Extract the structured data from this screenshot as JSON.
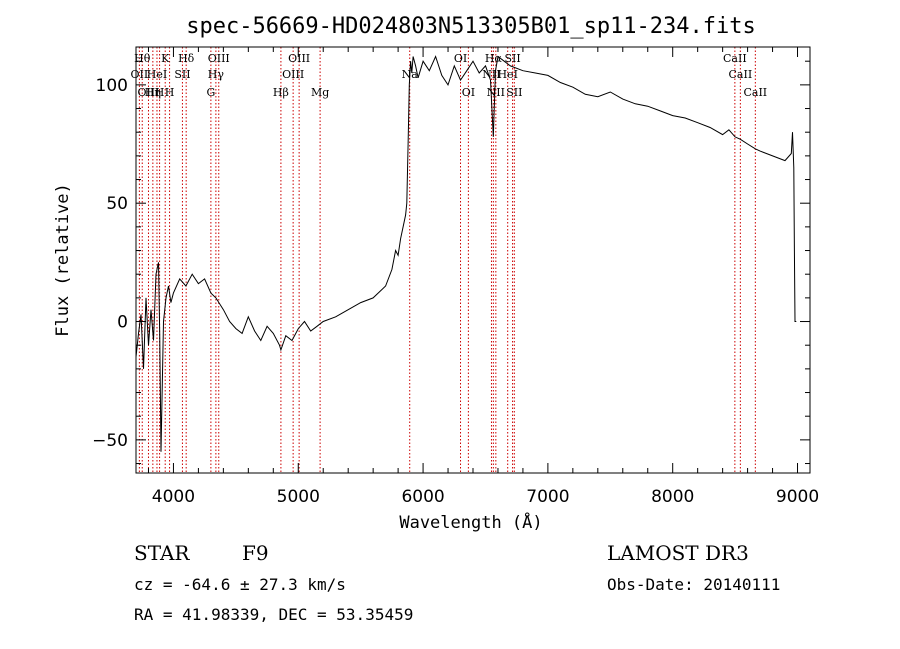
{
  "chart_data": {
    "type": "line",
    "title": "spec-56669-HD024803N513305B01_sp11-234.fits",
    "xlabel": "Wavelength (Å)",
    "ylabel": "Flux (relative)",
    "xlim": [
      3700,
      9100
    ],
    "ylim": [
      -64,
      116
    ],
    "xticks": [
      4000,
      5000,
      6000,
      7000,
      8000,
      9000
    ],
    "yticks": [
      -50,
      0,
      50,
      100
    ],
    "grid": false,
    "series": [
      {
        "name": "flux",
        "color": "#000000",
        "x": [
          3700,
          3720,
          3740,
          3760,
          3780,
          3800,
          3820,
          3840,
          3860,
          3880,
          3890,
          3900,
          3920,
          3940,
          3960,
          3980,
          4000,
          4050,
          4100,
          4150,
          4200,
          4250,
          4300,
          4340,
          4400,
          4450,
          4500,
          4550,
          4600,
          4650,
          4700,
          4750,
          4800,
          4850,
          4861,
          4900,
          4950,
          5000,
          5050,
          5100,
          5150,
          5200,
          5300,
          5400,
          5500,
          5600,
          5700,
          5750,
          5780,
          5800,
          5820,
          5840,
          5860,
          5870,
          5880,
          5890,
          5900,
          5910,
          5920,
          5940,
          5960,
          6000,
          6050,
          6100,
          6150,
          6200,
          6250,
          6300,
          6350,
          6400,
          6450,
          6500,
          6540,
          6563,
          6580,
          6600,
          6650,
          6700,
          6800,
          6900,
          7000,
          7100,
          7200,
          7300,
          7400,
          7500,
          7600,
          7700,
          7800,
          7900,
          8000,
          8100,
          8200,
          8300,
          8400,
          8450,
          8500,
          8542,
          8600,
          8662,
          8700,
          8800,
          8900,
          8950,
          8960,
          8970,
          8975,
          8980,
          8990
        ],
        "y": [
          -15,
          -5,
          3,
          -20,
          10,
          -10,
          5,
          -8,
          20,
          25,
          -5,
          -55,
          0,
          10,
          15,
          8,
          12,
          18,
          15,
          20,
          16,
          18,
          12,
          10,
          5,
          0,
          -3,
          -5,
          2,
          -4,
          -8,
          -2,
          -5,
          -10,
          -12,
          -6,
          -8,
          -3,
          0,
          -4,
          -2,
          0,
          2,
          5,
          8,
          10,
          15,
          22,
          30,
          28,
          35,
          40,
          45,
          50,
          75,
          100,
          110,
          105,
          112,
          108,
          103,
          110,
          106,
          112,
          104,
          100,
          108,
          102,
          106,
          110,
          105,
          108,
          102,
          78,
          106,
          112,
          110,
          108,
          106,
          105,
          104,
          101,
          99,
          96,
          95,
          97,
          94,
          92,
          91,
          89,
          87,
          86,
          84,
          82,
          79,
          81,
          78,
          77,
          75,
          73,
          72,
          70,
          68,
          71,
          80,
          65,
          30,
          0,
          0
        ]
      }
    ],
    "spectral_lines": [
      {
        "wavelength": 3750,
        "label": "Hθ",
        "row": 1
      },
      {
        "wavelength": 3727,
        "label": "OII",
        "row": 2
      },
      {
        "wavelength": 3800,
        "label": "OIII",
        "row": 3
      },
      {
        "wavelength": 3835,
        "label": "Hη",
        "row": 3
      },
      {
        "wavelength": 3868,
        "label": "HeI",
        "row": 2
      },
      {
        "wavelength": 3889,
        "label": "H",
        "row": 3
      },
      {
        "wavelength": 3934,
        "label": "K",
        "row": 1
      },
      {
        "wavelength": 3969,
        "label": "H",
        "row": 3
      },
      {
        "wavelength": 4072,
        "label": "SII",
        "row": 2
      },
      {
        "wavelength": 4102,
        "label": "Hδ",
        "row": 1
      },
      {
        "wavelength": 4300,
        "label": "G",
        "row": 3
      },
      {
        "wavelength": 4340,
        "label": "Hγ",
        "row": 2
      },
      {
        "wavelength": 4363,
        "label": "OIII",
        "row": 1
      },
      {
        "wavelength": 4861,
        "label": "Hβ",
        "row": 3
      },
      {
        "wavelength": 4959,
        "label": "OIII",
        "row": 2
      },
      {
        "wavelength": 5007,
        "label": "OIII",
        "row": 1
      },
      {
        "wavelength": 5175,
        "label": "Mg",
        "row": 3
      },
      {
        "wavelength": 5893,
        "label": "Na",
        "row": 2
      },
      {
        "wavelength": 6300,
        "label": "OI",
        "row": 1
      },
      {
        "wavelength": 6363,
        "label": "OI",
        "row": 3
      },
      {
        "wavelength": 6548,
        "label": "NII",
        "row": 2
      },
      {
        "wavelength": 6563,
        "label": "Hα",
        "row": 1
      },
      {
        "wavelength": 6583,
        "label": "NII",
        "row": 3
      },
      {
        "wavelength": 6678,
        "label": "HeI",
        "row": 2
      },
      {
        "wavelength": 6717,
        "label": "SII",
        "row": 1
      },
      {
        "wavelength": 6731,
        "label": "SII",
        "row": 3
      },
      {
        "wavelength": 8498,
        "label": "CaII",
        "row": 1
      },
      {
        "wavelength": 8542,
        "label": "CaII",
        "row": 2
      },
      {
        "wavelength": 8662,
        "label": "CaII",
        "row": 3
      }
    ],
    "line_color": "#cc0000"
  },
  "info": {
    "object_class": "STAR",
    "subclass": "F9",
    "survey": "LAMOST DR3",
    "redshift": "cz = -64.6 ± 27.3 km/s",
    "obs_date": "Obs-Date: 20140111",
    "coords": "RA =  41.98339, DEC =  53.35459"
  }
}
